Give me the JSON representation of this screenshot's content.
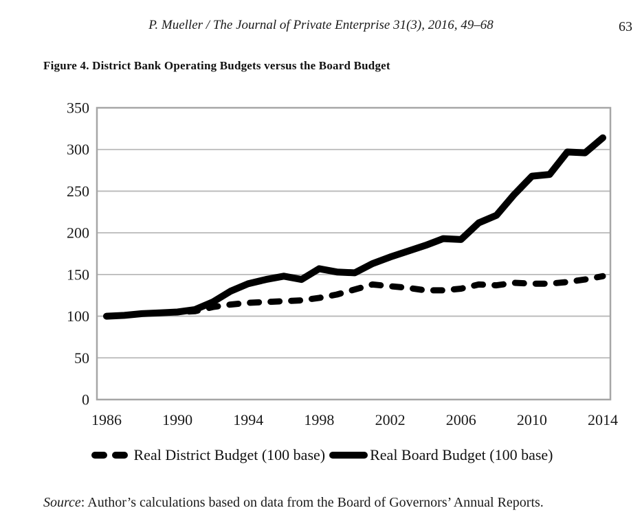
{
  "page": {
    "header": "P. Mueller / The Journal of Private Enterprise 31(3), 2016, 49–68",
    "page_number": "63",
    "figure_title": "Figure 4. District Bank Operating Budgets versus the Board Budget",
    "source_label": "Source",
    "source_text": ": Author’s calculations based on data from the Board of Governors’ Annual Reports."
  },
  "chart_data": {
    "type": "line",
    "title": "Figure 4. District Bank Operating Budgets versus the Board Budget",
    "x": [
      1986,
      1987,
      1988,
      1989,
      1990,
      1991,
      1992,
      1993,
      1994,
      1995,
      1996,
      1997,
      1998,
      1999,
      2000,
      2001,
      2002,
      2003,
      2004,
      2005,
      2006,
      2007,
      2008,
      2009,
      2010,
      2011,
      2012,
      2013,
      2014
    ],
    "series": [
      {
        "name": "Real District Budget (100 base)",
        "style": "dashed",
        "values": [
          100,
          101,
          103,
          104,
          105,
          106,
          111,
          114,
          116,
          117,
          118,
          119,
          122,
          126,
          132,
          138,
          136,
          134,
          131,
          131,
          133,
          138,
          137,
          140,
          139,
          139,
          141,
          144,
          148
        ]
      },
      {
        "name": "Real Board Budget (100 base)",
        "style": "solid",
        "values": [
          100,
          101,
          103,
          104,
          105,
          108,
          117,
          130,
          139,
          144,
          148,
          144,
          157,
          153,
          152,
          163,
          171,
          178,
          185,
          193,
          192,
          212,
          221,
          246,
          268,
          270,
          297,
          296,
          314
        ]
      }
    ],
    "ylim": [
      0,
      350
    ],
    "ytick_step": 50,
    "yticks": [
      0,
      50,
      100,
      150,
      200,
      250,
      300,
      350
    ],
    "xticks": [
      1986,
      1990,
      1994,
      1998,
      2002,
      2006,
      2010,
      2014
    ],
    "grid": "horizontal",
    "legend_position": "bottom",
    "line_color": "#000000",
    "grid_color": "#b8b8b8",
    "border_color": "#a6a6a6",
    "tick_font_color": "#1a1a1a"
  }
}
